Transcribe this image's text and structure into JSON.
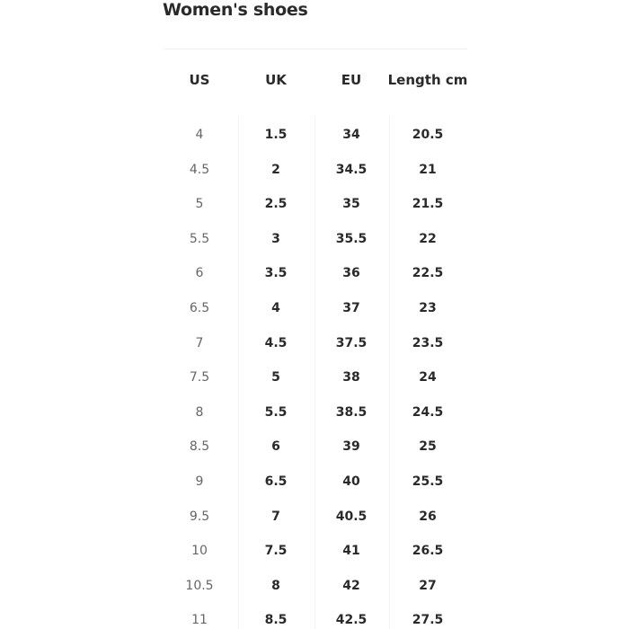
{
  "title": "Women's shoes",
  "columns": [
    "US",
    "UK",
    "EU",
    "Length cm"
  ],
  "rows": [
    [
      "4",
      "1.5",
      "34",
      "20.5"
    ],
    [
      "4.5",
      "2",
      "34.5",
      "21"
    ],
    [
      "5",
      "2.5",
      "35",
      "21.5"
    ],
    [
      "5.5",
      "3",
      "35.5",
      "22"
    ],
    [
      "6",
      "3.5",
      "36",
      "22.5"
    ],
    [
      "6.5",
      "4",
      "37",
      "23"
    ],
    [
      "7",
      "4.5",
      "37.5",
      "23.5"
    ],
    [
      "7.5",
      "5",
      "38",
      "24"
    ],
    [
      "8",
      "5.5",
      "38.5",
      "24.5"
    ],
    [
      "8.5",
      "6",
      "39",
      "25"
    ],
    [
      "9",
      "6.5",
      "40",
      "25.5"
    ],
    [
      "9.5",
      "7",
      "40.5",
      "26"
    ],
    [
      "10",
      "7.5",
      "41",
      "26.5"
    ],
    [
      "10.5",
      "8",
      "42",
      "27"
    ],
    [
      "11",
      "8.5",
      "42.5",
      "27.5"
    ]
  ]
}
